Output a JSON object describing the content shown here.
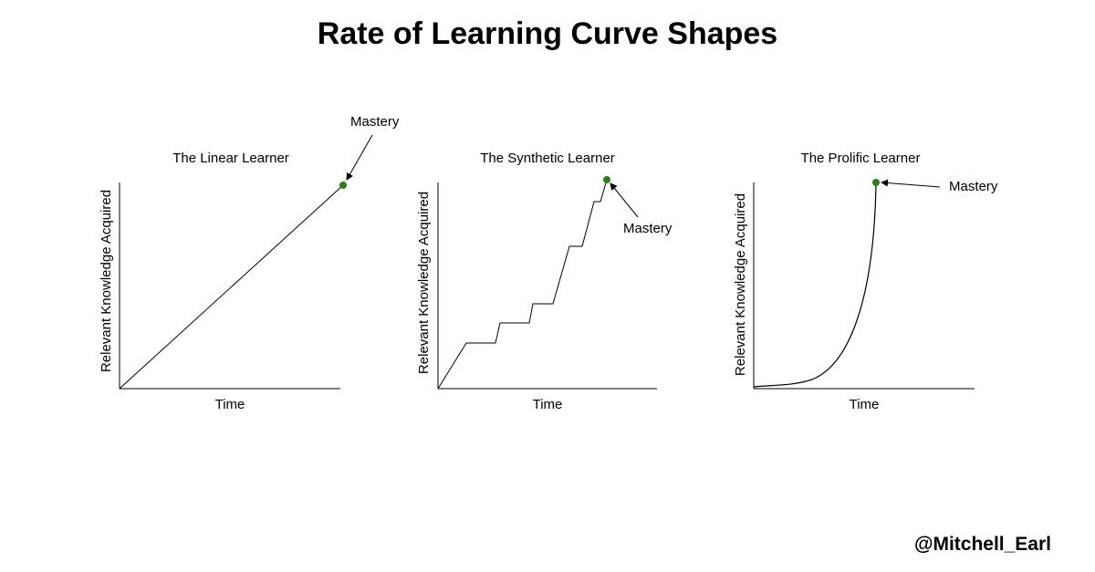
{
  "title": "Rate of Learning Curve Shapes",
  "credit": "@Mitchell_Earl",
  "colors": {
    "mastery_dot": "#2f7d1f",
    "line": "#000000",
    "background": "#ffffff"
  },
  "panels": [
    {
      "title": "The Linear Learner",
      "xlabel": "Time",
      "ylabel": "Relevant Knowledge Acquired",
      "marker_label": "Mastery",
      "curve": "linear"
    },
    {
      "title": "The Synthetic Learner",
      "xlabel": "Time",
      "ylabel": "Relevant Knowledge Acquired",
      "marker_label": "Mastery",
      "curve": "stepped"
    },
    {
      "title": "The Prolific Learner",
      "xlabel": "Time",
      "ylabel": "Relevant Knowledge Acquired",
      "marker_label": "Mastery",
      "curve": "exponential"
    }
  ]
}
